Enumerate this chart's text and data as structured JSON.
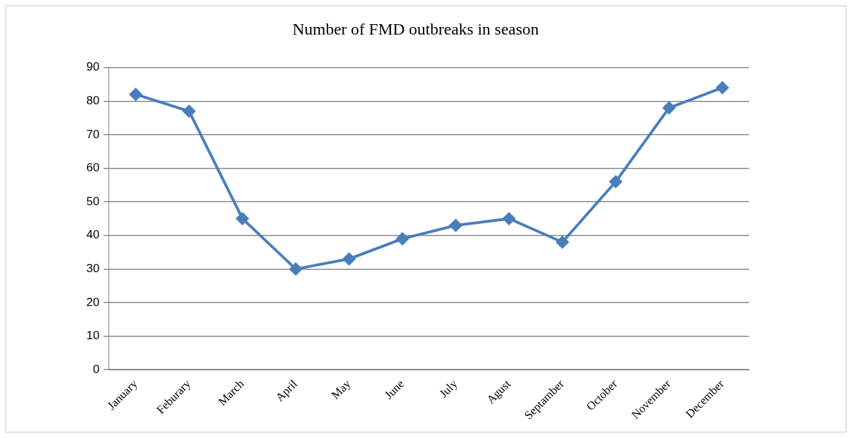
{
  "chart_data": {
    "type": "line",
    "title": "Number of FMD outbreaks in season",
    "categories": [
      "January",
      "Feburary",
      "March",
      "April",
      "May",
      "June",
      "July",
      "Agust",
      "Septamber",
      "October",
      "November",
      "December"
    ],
    "series": [
      {
        "color": "#4a7ebb",
        "values": [
          82,
          77,
          45,
          30,
          33,
          39,
          43,
          45,
          38,
          56,
          78,
          84
        ]
      }
    ],
    "ylim": [
      0,
      90
    ],
    "yticks": [
      0,
      10,
      20,
      30,
      40,
      50,
      60,
      70,
      80,
      90
    ],
    "grid": "y",
    "legend": false,
    "marker": "diamond",
    "line_style": "solid"
  }
}
